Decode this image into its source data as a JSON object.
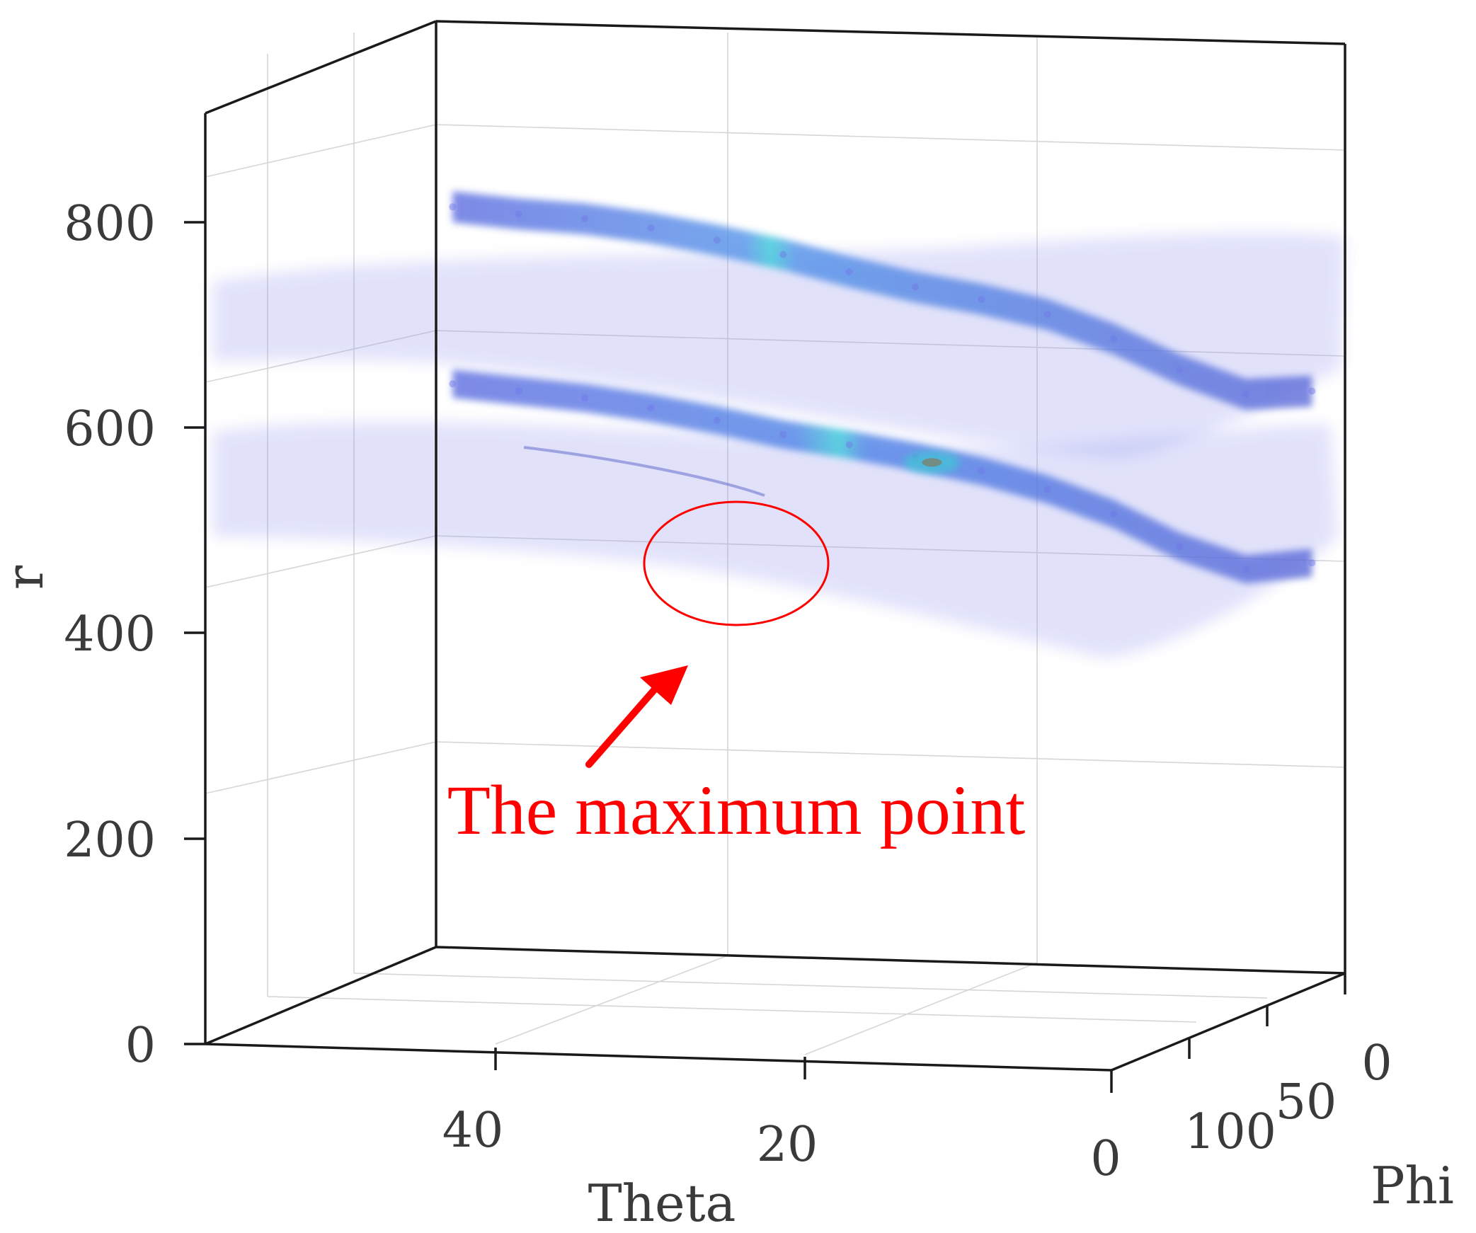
{
  "chart_data": {
    "type": "scatter",
    "dimensions": 3,
    "xlabel": "Theta",
    "ylabel": "Phi",
    "zlabel": "r",
    "xticks": [
      "40",
      "20",
      "0"
    ],
    "yticks": [
      "0",
      "50",
      "100"
    ],
    "zticks": [
      "0",
      "200",
      "400",
      "600",
      "800"
    ],
    "xlim": [
      0,
      55
    ],
    "ylim": [
      0,
      150
    ],
    "zlim": [
      0,
      900
    ],
    "grid": true,
    "colormap": [
      "#8a8fe8",
      "#5a6ae0",
      "#3f8be0",
      "#32d6d0",
      "#b8c84a",
      "#c0352a"
    ],
    "point_color": "#6f75e6",
    "series": [
      {
        "band": "upper",
        "points": [
          {
            "theta": 54,
            "r": 720
          },
          {
            "theta": 50,
            "r": 715
          },
          {
            "theta": 46,
            "r": 712
          },
          {
            "theta": 42,
            "r": 705
          },
          {
            "theta": 38,
            "r": 695
          },
          {
            "theta": 34,
            "r": 683
          },
          {
            "theta": 30,
            "r": 668
          },
          {
            "theta": 26,
            "r": 655
          },
          {
            "theta": 22,
            "r": 645
          },
          {
            "theta": 18,
            "r": 632
          },
          {
            "theta": 14,
            "r": 610
          },
          {
            "theta": 10,
            "r": 582
          },
          {
            "theta": 6,
            "r": 560
          },
          {
            "theta": 2,
            "r": 565
          }
        ]
      },
      {
        "band": "lower",
        "points": [
          {
            "theta": 54,
            "r": 548
          },
          {
            "theta": 50,
            "r": 543
          },
          {
            "theta": 46,
            "r": 538
          },
          {
            "theta": 42,
            "r": 530
          },
          {
            "theta": 38,
            "r": 520
          },
          {
            "theta": 34,
            "r": 508
          },
          {
            "theta": 30,
            "r": 500
          },
          {
            "theta": 26,
            "r": 490
          },
          {
            "theta": 22,
            "r": 478
          },
          {
            "theta": 18,
            "r": 462
          },
          {
            "theta": 14,
            "r": 440
          },
          {
            "theta": 10,
            "r": 410
          },
          {
            "theta": 6,
            "r": 390
          },
          {
            "theta": 2,
            "r": 398
          }
        ]
      }
    ],
    "maximum": {
      "theta": 25,
      "r": 485
    }
  },
  "annotation": {
    "text": "The maximum point",
    "color": "#ff0000"
  }
}
